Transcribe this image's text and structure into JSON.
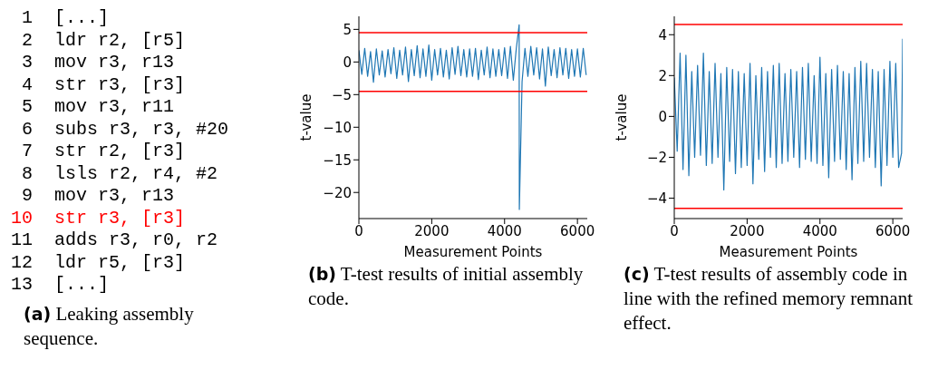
{
  "chart_data": [
    {
      "type": "other",
      "title": "(a) Leaking assembly sequence.",
      "annotations": [
        "1 [...]",
        "2 ldr r2, [r5]",
        "3 mov r3, r13",
        "4 str r3, [r3]",
        "5 mov r3, r11",
        "6 subs r3, r3, #20",
        "7 str r2, [r3]",
        "8 lsls r2, r4, #2",
        "9 mov r3, r13",
        "10 str r3, [r3]",
        "11 adds r3, r0, r2",
        "12 ldr r5, [r3]",
        "13 [...]"
      ],
      "colors": [
        "#000000",
        "#000000",
        "#000000",
        "#000000",
        "#000000",
        "#000000",
        "#000000",
        "#000000",
        "#000000",
        "#ff0000",
        "#000000",
        "#000000",
        "#000000"
      ]
    },
    {
      "type": "line",
      "title": "(b) T-test results of initial assembly code.",
      "xlabel": "Measurement Points",
      "ylabel": "t-value",
      "xlim": [
        0,
        6270
      ],
      "xticks": [
        0,
        2000,
        4000,
        6000
      ],
      "ylim": [
        -24,
        7
      ],
      "yticks": [
        -20,
        -15,
        -10,
        -5,
        0,
        5
      ],
      "ref_lines": [
        {
          "axis": "y",
          "value": 4.5,
          "color": "#ff0000"
        },
        {
          "axis": "y",
          "value": -4.5,
          "color": "#ff0000"
        }
      ],
      "series": [
        {
          "color": "#1f77b4",
          "x": [
            0,
            80,
            160,
            240,
            320,
            400,
            480,
            560,
            640,
            720,
            800,
            880,
            960,
            1040,
            1120,
            1200,
            1280,
            1360,
            1440,
            1520,
            1600,
            1680,
            1760,
            1840,
            1920,
            2000,
            2080,
            2160,
            2240,
            2320,
            2400,
            2480,
            2560,
            2640,
            2720,
            2800,
            2880,
            2960,
            3040,
            3120,
            3200,
            3280,
            3360,
            3440,
            3520,
            3600,
            3680,
            3760,
            3840,
            3920,
            4000,
            4080,
            4160,
            4240,
            4320,
            4400,
            4405,
            4480,
            4560,
            4640,
            4720,
            4800,
            4880,
            4960,
            5040,
            5120,
            5200,
            5280,
            5360,
            5440,
            5520,
            5600,
            5680,
            5760,
            5840,
            5920,
            6000,
            6080,
            6160,
            6240
          ],
          "values": [
            1.8,
            -1.9,
            2.1,
            -2.2,
            1.6,
            -3.1,
            2.0,
            -2.0,
            1.7,
            -2.3,
            1.9,
            -1.8,
            2.2,
            -2.5,
            1.8,
            -2.0,
            2.3,
            -3.0,
            1.9,
            -2.1,
            2.5,
            -2.4,
            2.0,
            -2.2,
            2.6,
            -2.8,
            1.9,
            -2.0,
            2.1,
            -2.3,
            1.8,
            -2.6,
            2.2,
            -1.9,
            2.4,
            -2.1,
            1.9,
            -2.3,
            2.0,
            -2.2,
            2.1,
            -2.7,
            1.8,
            -2.0,
            2.3,
            -2.4,
            2.0,
            -2.2,
            1.9,
            -2.1,
            2.2,
            -2.5,
            2.4,
            -2.8,
            2.0,
            5.7,
            -22.6,
            -3.0,
            2.1,
            -2.2,
            2.4,
            -2.0,
            2.2,
            -2.6,
            2.0,
            -3.7,
            2.3,
            -2.1,
            1.9,
            -2.4,
            2.2,
            -2.0,
            2.1,
            -2.5,
            1.9,
            -2.2,
            2.0,
            -2.3,
            2.1,
            -2.0
          ]
        }
      ]
    },
    {
      "type": "line",
      "title": "(c) T-test results of assembly code in line with the refined memory remnant effect.",
      "xlabel": "Measurement Points",
      "ylabel": "t-value",
      "xlim": [
        0,
        6270
      ],
      "xticks": [
        0,
        2000,
        4000,
        6000
      ],
      "ylim": [
        -5,
        4.9
      ],
      "yticks": [
        -4,
        -2,
        0,
        2,
        4
      ],
      "ref_lines": [
        {
          "axis": "y",
          "value": 4.5,
          "color": "#ff0000"
        },
        {
          "axis": "y",
          "value": -4.5,
          "color": "#ff0000"
        }
      ],
      "series": [
        {
          "color": "#1f77b4",
          "x": [
            0,
            80,
            160,
            240,
            320,
            400,
            480,
            560,
            640,
            720,
            800,
            880,
            960,
            1040,
            1120,
            1200,
            1280,
            1360,
            1440,
            1520,
            1600,
            1680,
            1760,
            1840,
            1920,
            2000,
            2080,
            2160,
            2240,
            2320,
            2400,
            2480,
            2560,
            2640,
            2720,
            2800,
            2880,
            2960,
            3040,
            3120,
            3200,
            3280,
            3360,
            3440,
            3520,
            3600,
            3680,
            3760,
            3840,
            3920,
            4000,
            4080,
            4160,
            4240,
            4320,
            4400,
            4480,
            4560,
            4640,
            4720,
            4800,
            4880,
            4960,
            5040,
            5120,
            5200,
            5280,
            5360,
            5440,
            5520,
            5600,
            5680,
            5760,
            5840,
            5920,
            6000,
            6080,
            6160,
            6240,
            6270
          ],
          "values": [
            1.9,
            -1.7,
            3.1,
            -2.6,
            3.0,
            -2.9,
            2.2,
            -2.0,
            2.5,
            -1.9,
            3.1,
            -2.4,
            2.2,
            -2.3,
            2.6,
            -2.0,
            2.1,
            -3.6,
            2.4,
            -2.2,
            2.3,
            -2.8,
            2.2,
            -2.5,
            2.1,
            -2.4,
            2.6,
            -3.3,
            2.0,
            -2.1,
            2.4,
            -2.7,
            2.2,
            -2.0,
            2.5,
            -2.5,
            2.6,
            -2.3,
            2.1,
            -2.2,
            2.3,
            -2.0,
            2.2,
            -2.5,
            2.4,
            -2.1,
            2.6,
            -2.2,
            2.0,
            -2.3,
            2.9,
            -2.4,
            2.1,
            -3.0,
            2.3,
            -2.2,
            2.5,
            -2.1,
            2.2,
            -2.6,
            2.1,
            -3.1,
            2.4,
            -2.3,
            2.7,
            -2.2,
            2.6,
            -2.0,
            2.3,
            -2.5,
            2.2,
            -3.4,
            2.3,
            -2.4,
            2.7,
            -2.0,
            2.6,
            -2.5,
            -1.8,
            3.8
          ]
        }
      ]
    }
  ]
}
